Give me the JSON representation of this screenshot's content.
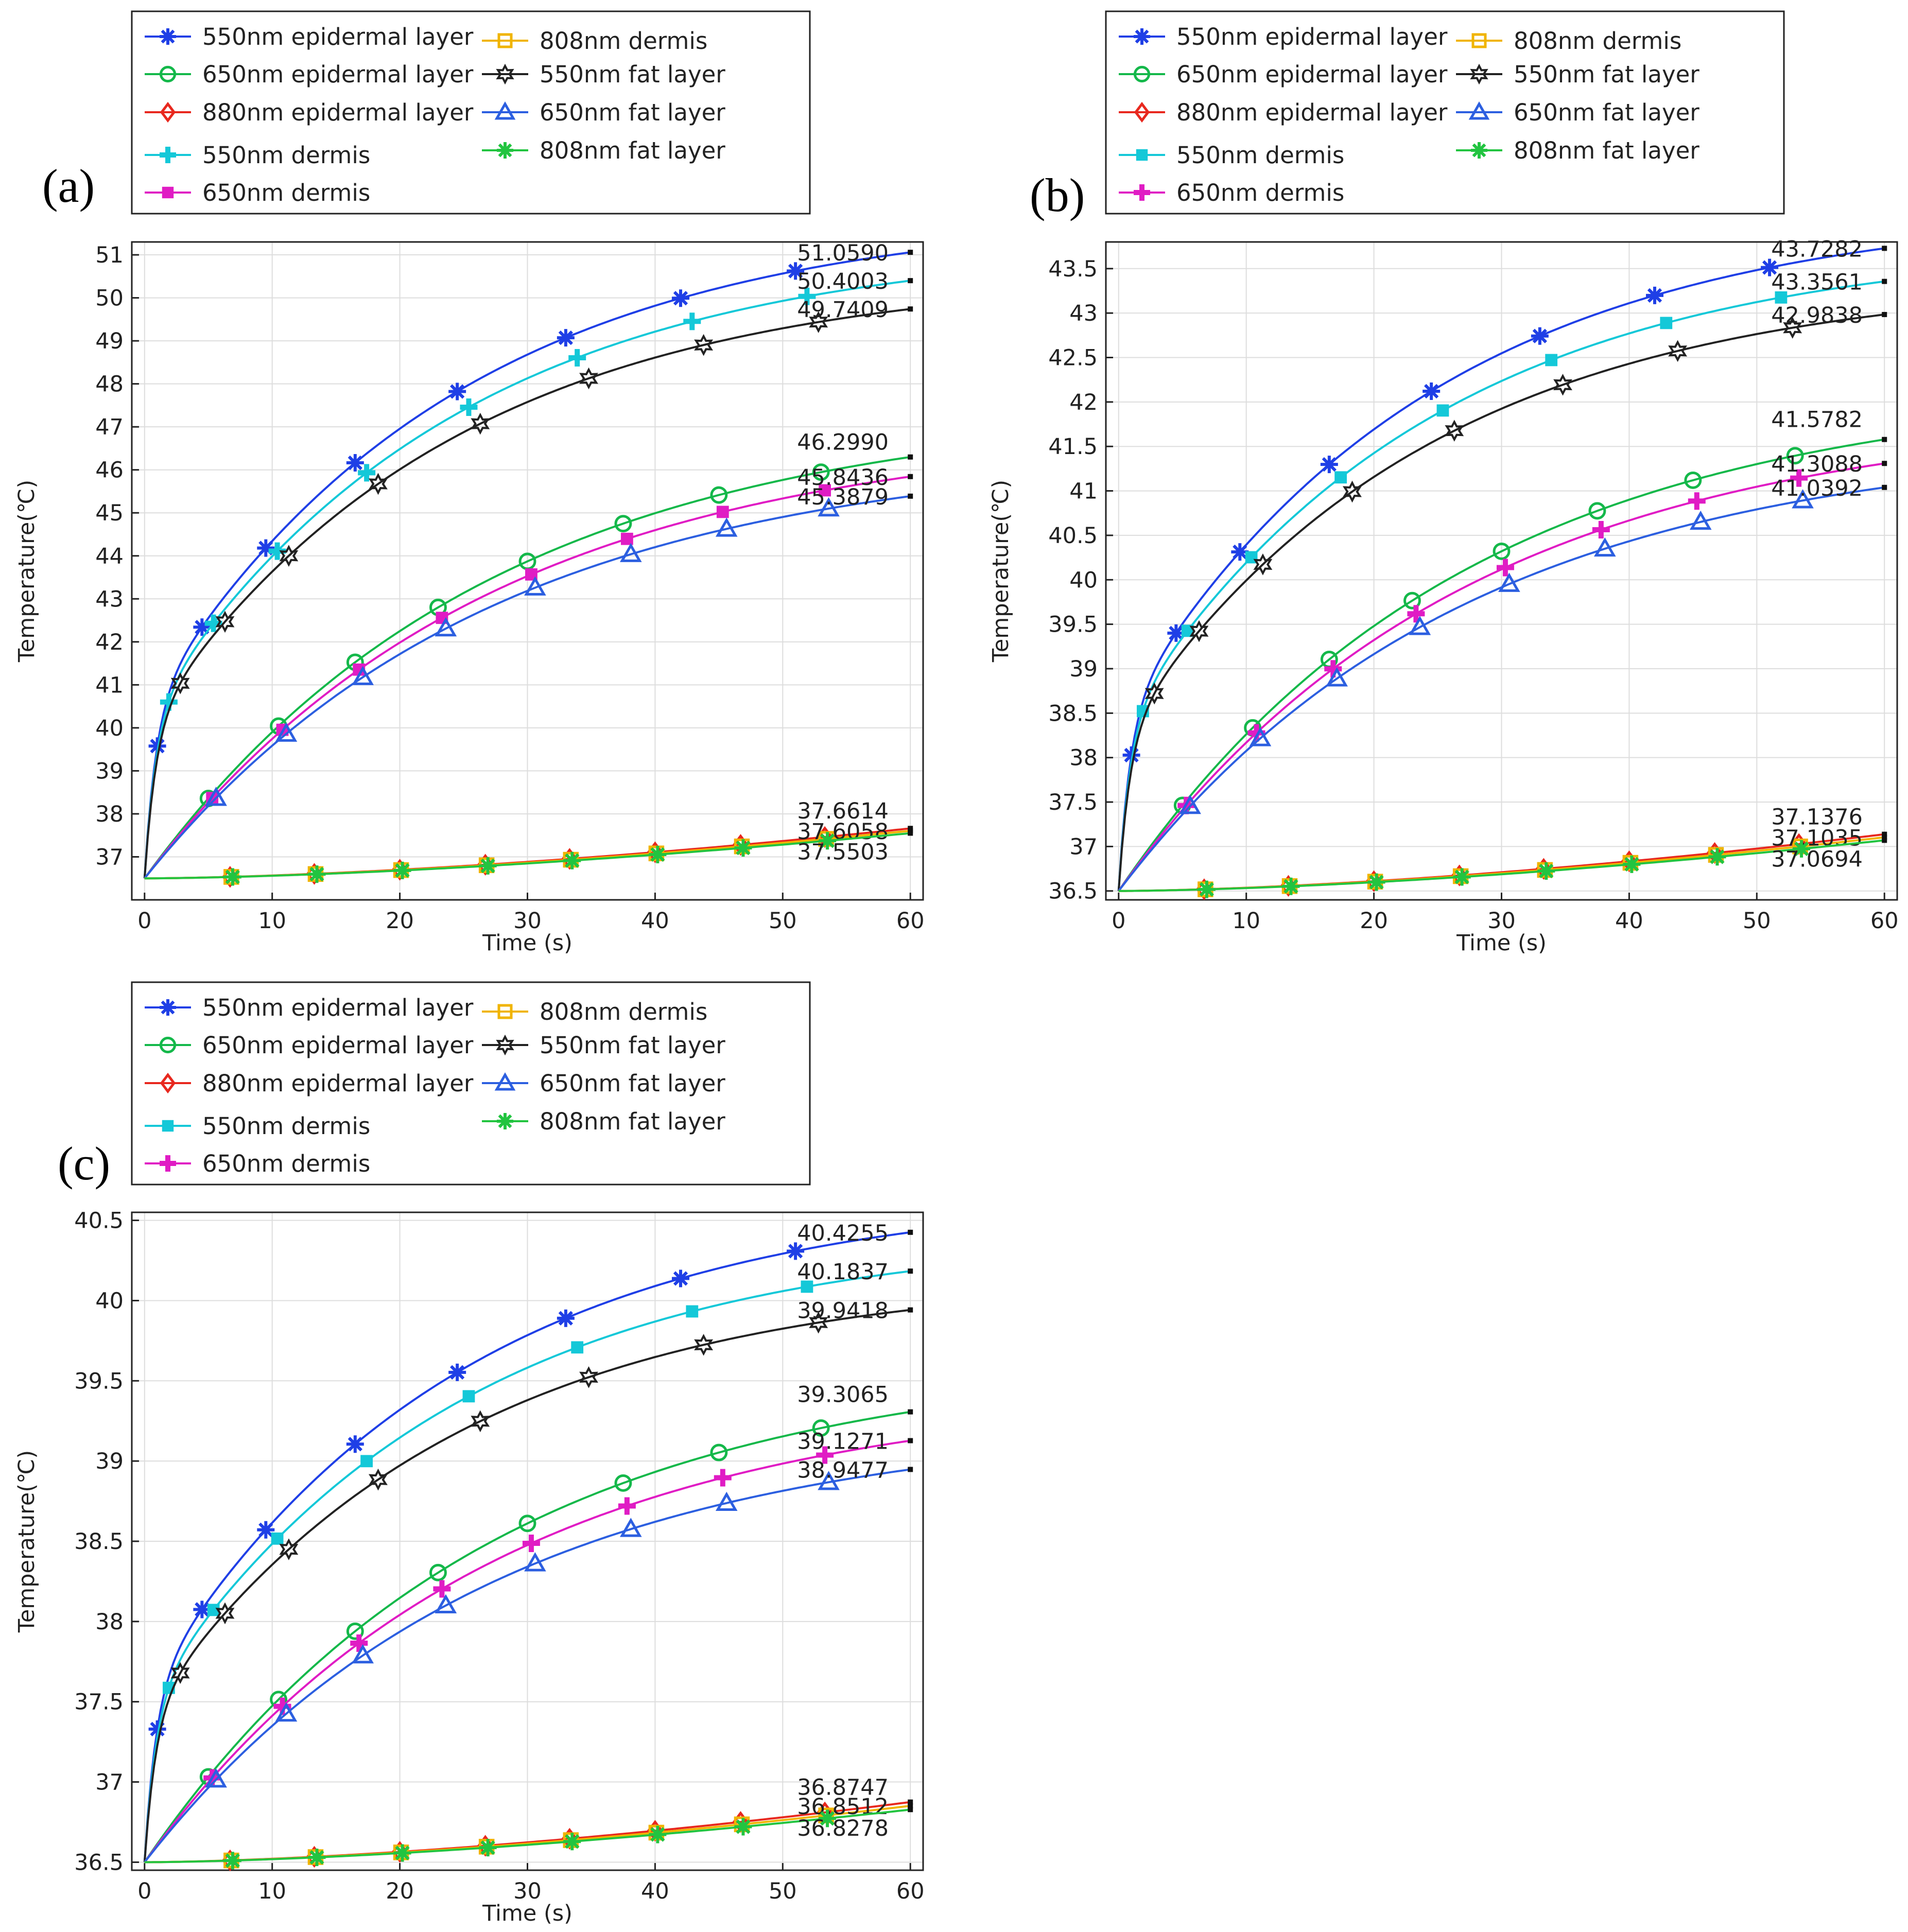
{
  "legend_entries": [
    {
      "name": "550nm epidermal layer",
      "color": "#1f3fe6",
      "marker": "asterisk"
    },
    {
      "name": "650nm epidermal layer",
      "color": "#14b84a",
      "marker": "circle"
    },
    {
      "name": "880nm epidermal layer",
      "color": "#e8281e",
      "marker": "diamond"
    },
    {
      "name": "550nm dermis",
      "color": "#14c8d8",
      "marker": "plus"
    },
    {
      "name": "650nm dermis",
      "color": "#e01cc4",
      "marker": "square"
    },
    {
      "name": "808nm dermis",
      "color": "#f0b400",
      "marker": "square-open"
    },
    {
      "name": "550nm fat layer",
      "color": "#222222",
      "marker": "star-open"
    },
    {
      "name": "650nm fat layer",
      "color": "#2c5fe0",
      "marker": "triangle-open"
    },
    {
      "name": "808nm fat layer",
      "color": "#22c440",
      "marker": "asterisk"
    }
  ],
  "chart_data": [
    {
      "panel": "(a)",
      "type": "line",
      "xlabel": "Time (s)",
      "ylabel": "Temperature(℃)",
      "xlim": [
        -1,
        61
      ],
      "ylim": [
        36.0,
        51.3
      ],
      "xticks": [
        0,
        10,
        20,
        30,
        40,
        50,
        60
      ],
      "yticks": [
        37,
        38,
        39,
        40,
        41,
        42,
        43,
        44,
        45,
        46,
        47,
        48,
        49,
        50,
        51
      ],
      "grid": true,
      "legend_position": "top",
      "start_value": 36.5,
      "series": [
        {
          "name": "550nm epidermal layer",
          "kind": "fast",
          "final": 51.059,
          "marker": "asterisk"
        },
        {
          "name": "550nm dermis",
          "kind": "fast",
          "final": 50.4003,
          "marker": "plus"
        },
        {
          "name": "550nm fat layer",
          "kind": "fast",
          "final": 49.7409,
          "marker": "star-open"
        },
        {
          "name": "650nm epidermal layer",
          "kind": "mid",
          "final": 46.299,
          "marker": "circle"
        },
        {
          "name": "650nm dermis",
          "kind": "mid",
          "final": 45.8436,
          "marker": "square"
        },
        {
          "name": "650nm fat layer",
          "kind": "mid",
          "final": 45.3879,
          "marker": "triangle-open"
        },
        {
          "name": "880nm epidermal layer",
          "kind": "slow",
          "final": 37.6614,
          "marker": "diamond"
        },
        {
          "name": "808nm dermis",
          "kind": "slow",
          "final": 37.6058,
          "marker": "square-open"
        },
        {
          "name": "808nm fat layer",
          "kind": "slow",
          "final": 37.5503,
          "marker": "asterisk"
        }
      ],
      "end_labels": [
        "51.0590",
        "50.4003",
        "49.7409",
        "46.2990",
        "45.8436",
        "45.3879",
        "37.6614",
        "37.6058",
        "37.5503"
      ]
    },
    {
      "panel": "(b)",
      "type": "line",
      "xlabel": "Time (s)",
      "ylabel": "Temperature(℃)",
      "xlim": [
        -1,
        61
      ],
      "ylim": [
        36.4,
        43.8
      ],
      "xticks": [
        0,
        10,
        20,
        30,
        40,
        50,
        60
      ],
      "yticks": [
        36.5,
        37,
        37.5,
        38,
        38.5,
        39,
        39.5,
        40,
        40.5,
        41,
        41.5,
        42,
        42.5,
        43,
        43.5
      ],
      "grid": true,
      "legend_position": "top",
      "start_value": 36.5,
      "series": [
        {
          "name": "550nm epidermal layer",
          "kind": "fast",
          "final": 43.7282,
          "marker": "asterisk"
        },
        {
          "name": "550nm dermis",
          "kind": "fast",
          "final": 43.3561,
          "marker": "square"
        },
        {
          "name": "550nm fat layer",
          "kind": "fast",
          "final": 42.9838,
          "marker": "star-open"
        },
        {
          "name": "650nm epidermal layer",
          "kind": "mid",
          "final": 41.5782,
          "marker": "circle"
        },
        {
          "name": "650nm dermis",
          "kind": "mid",
          "final": 41.3088,
          "marker": "plus"
        },
        {
          "name": "650nm fat layer",
          "kind": "mid",
          "final": 41.0392,
          "marker": "triangle-open"
        },
        {
          "name": "880nm epidermal layer",
          "kind": "slow",
          "final": 37.1376,
          "marker": "diamond"
        },
        {
          "name": "808nm dermis",
          "kind": "slow",
          "final": 37.1035,
          "marker": "square-open"
        },
        {
          "name": "808nm fat layer",
          "kind": "slow",
          "final": 37.0694,
          "marker": "asterisk"
        }
      ],
      "end_labels": [
        "43.7282",
        "43.3561",
        "42.9838",
        "41.5782",
        "41.3088",
        "41.0392",
        "37.1376",
        "37.1035",
        "37.0694"
      ]
    },
    {
      "panel": "(c)",
      "type": "line",
      "xlabel": "Time (s)",
      "ylabel": "Temperature(℃)",
      "xlim": [
        -1,
        61
      ],
      "ylim": [
        36.45,
        40.55
      ],
      "xticks": [
        0,
        10,
        20,
        30,
        40,
        50,
        60
      ],
      "yticks": [
        36.5,
        37,
        37.5,
        38,
        38.5,
        39,
        39.5,
        40,
        40.5
      ],
      "grid": true,
      "legend_position": "top",
      "start_value": 36.5,
      "series": [
        {
          "name": "550nm epidermal layer",
          "kind": "fast",
          "final": 40.4255,
          "marker": "asterisk"
        },
        {
          "name": "550nm dermis",
          "kind": "fast",
          "final": 40.1837,
          "marker": "square"
        },
        {
          "name": "550nm fat layer",
          "kind": "fast",
          "final": 39.9418,
          "marker": "star-open"
        },
        {
          "name": "650nm epidermal layer",
          "kind": "mid",
          "final": 39.3065,
          "marker": "circle"
        },
        {
          "name": "650nm dermis",
          "kind": "mid",
          "final": 39.1271,
          "marker": "plus"
        },
        {
          "name": "650nm fat layer",
          "kind": "mid",
          "final": 38.9477,
          "marker": "triangle-open"
        },
        {
          "name": "880nm epidermal layer",
          "kind": "slow",
          "final": 36.8747,
          "marker": "diamond"
        },
        {
          "name": "808nm dermis",
          "kind": "slow",
          "final": 36.8512,
          "marker": "square-open"
        },
        {
          "name": "808nm fat layer",
          "kind": "slow",
          "final": 36.8278,
          "marker": "asterisk"
        }
      ],
      "end_labels": [
        "40.4255",
        "40.1837",
        "39.9418",
        "39.3065",
        "39.1271",
        "38.9477",
        "36.8747",
        "36.8512",
        "36.8278"
      ]
    }
  ]
}
